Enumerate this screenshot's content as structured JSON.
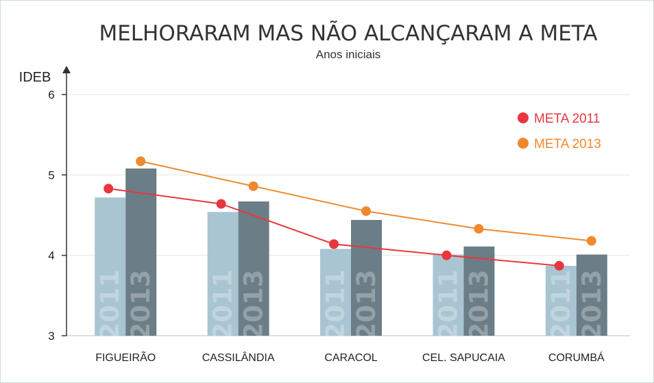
{
  "chart_data": {
    "type": "bar",
    "title": "MELHORARAM MAS NÃO ALCANÇARAM A META",
    "subtitle": "Anos iniciais",
    "ylabel": "IDEB",
    "ylim": [
      3,
      6
    ],
    "yticks": [
      "3",
      "4",
      "5",
      "6"
    ],
    "categories": [
      "FIGUEIRÃO",
      "CASSILÂNDIA",
      "CARACOL",
      "CEL. SAPUCAIA",
      "CORUMBÁ"
    ],
    "series": [
      {
        "name": "2011",
        "type": "bar",
        "color": "#a9c5d2",
        "values": [
          4.72,
          4.54,
          4.08,
          4.01,
          3.87
        ]
      },
      {
        "name": "2013",
        "type": "bar",
        "color": "#6b7d86",
        "values": [
          5.08,
          4.67,
          4.44,
          4.11,
          4.01
        ]
      },
      {
        "name": "META 2011",
        "type": "line",
        "color": "#e8363e",
        "values": [
          4.83,
          4.64,
          4.14,
          4.0,
          3.87
        ]
      },
      {
        "name": "META 2013",
        "type": "line",
        "color": "#f0892e",
        "values": [
          5.17,
          4.86,
          4.55,
          4.33,
          4.18
        ]
      }
    ],
    "legend_position": "top-right",
    "grid": true
  }
}
